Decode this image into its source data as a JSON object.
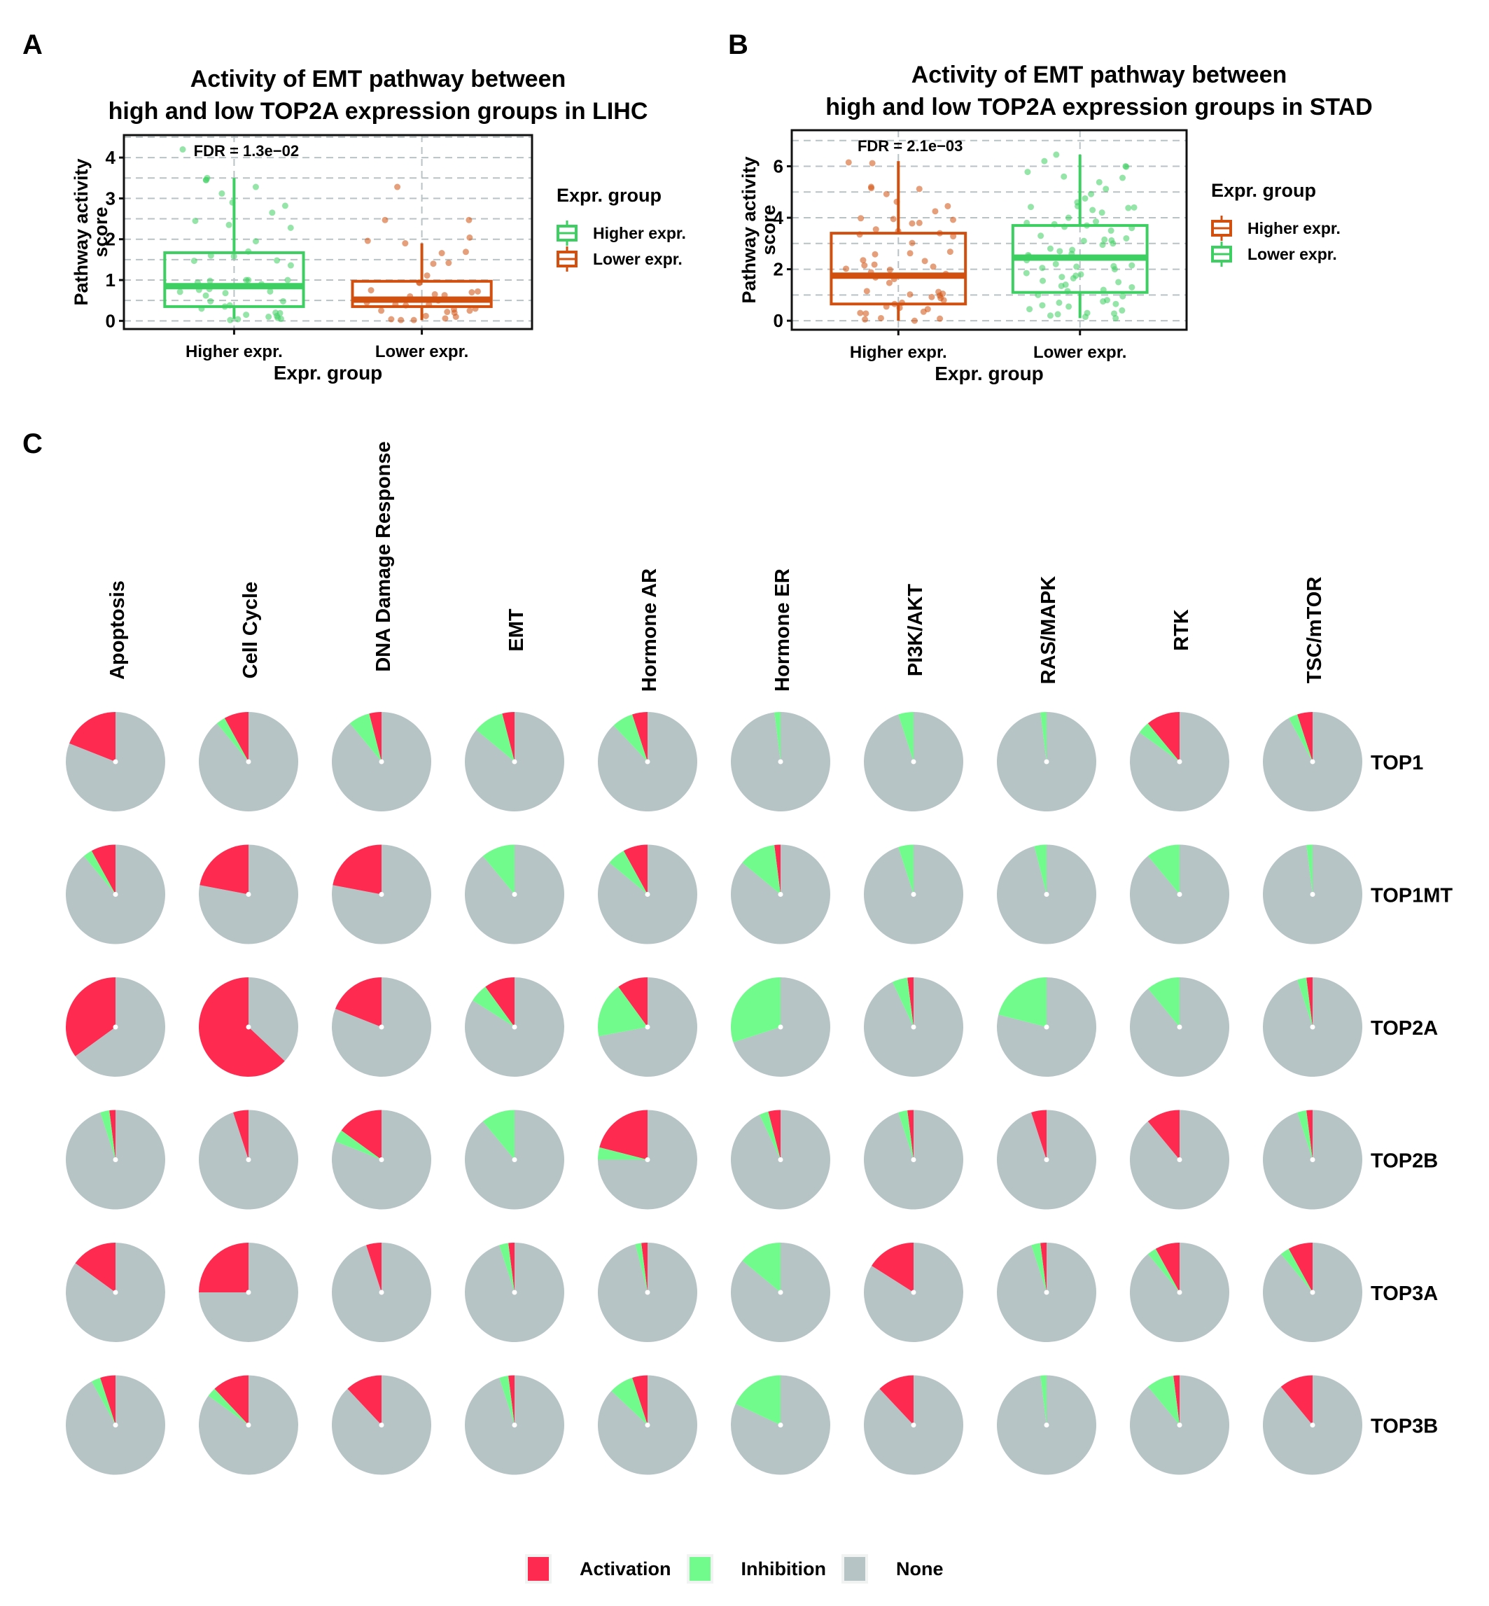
{
  "panels": {
    "A": {
      "letter": "A"
    },
    "B": {
      "letter": "B"
    },
    "C": {
      "letter": "C"
    }
  },
  "colors": {
    "green": "#3ecf63",
    "orange": "#d2500f",
    "activation": "#ff2a50",
    "inhibition": "#70fb8c",
    "none": "#b7c4c6",
    "grid": "#b9c2c4"
  },
  "chart_data": [
    {
      "type": "box",
      "id": "A",
      "title_line1": "Activity of EMT pathway between",
      "title_line2": "high and low TOP2A expression groups in LIHC",
      "xlabel": "Expr. group",
      "ylabel_line1": "Pathway activity",
      "ylabel_line2": "score",
      "annotation": "FDR = 1.3e−02",
      "ylim": [
        -0.2,
        4.55
      ],
      "yticks": [
        0,
        1,
        2,
        3,
        4
      ],
      "grid": true,
      "legend": {
        "title": "Expr. group",
        "position": "right",
        "items": [
          {
            "label": "Higher expr.",
            "color": "#3ecf63"
          },
          {
            "label": "Lower expr.",
            "color": "#d2500f"
          }
        ]
      },
      "categories": [
        "Higher expr.",
        "Lower expr."
      ],
      "boxes": [
        {
          "group": "Higher expr.",
          "color": "#3ecf63",
          "whisker_low": 0.05,
          "q1": 0.35,
          "median": 0.85,
          "q3": 1.67,
          "whisker_high": 3.5,
          "points": [
            4.2,
            3.5,
            3.45,
            3.45,
            3.28,
            3.12,
            2.9,
            2.82,
            2.65,
            2.45,
            2.35,
            2.28,
            1.95,
            1.7,
            1.6,
            1.58,
            1.48,
            1.47,
            1.36,
            1.0,
            1.0,
            1.0,
            0.98,
            0.94,
            0.9,
            0.78,
            0.76,
            0.72,
            0.71,
            0.68,
            0.62,
            0.48,
            0.48,
            0.38,
            0.35,
            0.3,
            0.2,
            0.19,
            0.15,
            0.12,
            0.1,
            0.07,
            0.05,
            0.04,
            0.02
          ]
        },
        {
          "group": "Lower expr.",
          "color": "#d2500f",
          "whisker_low": 0.02,
          "q1": 0.35,
          "median": 0.52,
          "q3": 0.97,
          "whisker_high": 1.9,
          "points": [
            3.28,
            2.47,
            2.47,
            2.04,
            1.96,
            1.9,
            1.69,
            1.66,
            1.42,
            1.4,
            1.11,
            0.94,
            0.93,
            0.75,
            0.72,
            0.7,
            0.65,
            0.63,
            0.6,
            0.5,
            0.45,
            0.4,
            0.4,
            0.38,
            0.3,
            0.28,
            0.25,
            0.25,
            0.22,
            0.2,
            0.12,
            0.1,
            0.06,
            0.04,
            0.02,
            0.02
          ]
        }
      ]
    },
    {
      "type": "box",
      "id": "B",
      "title_line1": "Activity of EMT pathway between",
      "title_line2": "high and low TOP2A expression groups in STAD",
      "xlabel": "Expr. group",
      "ylabel_line1": "Pathway activity",
      "ylabel_line2": "score",
      "annotation": "FDR = 2.1e−03",
      "ylim": [
        -0.35,
        7.4
      ],
      "yticks": [
        0,
        2,
        4,
        6
      ],
      "grid": true,
      "legend": {
        "title": "Expr. group",
        "position": "right",
        "items": [
          {
            "label": "Higher expr.",
            "color": "#d2500f"
          },
          {
            "label": "Lower expr.",
            "color": "#3ecf63"
          }
        ]
      },
      "categories": [
        "Higher expr.",
        "Lower expr."
      ],
      "boxes": [
        {
          "group": "Higher expr.",
          "color": "#d2500f",
          "whisker_low": 0.0,
          "q1": 0.65,
          "median": 1.75,
          "q3": 3.4,
          "whisker_high": 6.2,
          "points": [
            6.15,
            6.12,
            5.2,
            5.15,
            5.12,
            4.92,
            4.62,
            4.45,
            4.25,
            3.98,
            3.95,
            3.92,
            3.8,
            3.78,
            3.55,
            3.48,
            3.4,
            3.35,
            3.28,
            3.02,
            2.68,
            2.62,
            2.58,
            2.35,
            2.32,
            2.18,
            2.15,
            2.1,
            2.02,
            1.98,
            1.88,
            1.82,
            1.68,
            1.62,
            1.47,
            1.15,
            1.12,
            1.05,
            1.02,
            0.98,
            0.92,
            0.88,
            0.8,
            0.7,
            0.65,
            0.55,
            0.5,
            0.45,
            0.35,
            0.3,
            0.28,
            0.1,
            0.08,
            0.05,
            0.0
          ]
        },
        {
          "group": "Lower expr.",
          "color": "#3ecf63",
          "whisker_low": 0.1,
          "q1": 1.1,
          "median": 2.45,
          "q3": 3.7,
          "whisker_high": 6.45,
          "points": [
            6.45,
            6.2,
            6.0,
            5.98,
            5.78,
            5.6,
            5.55,
            5.38,
            5.12,
            4.92,
            4.75,
            4.6,
            4.45,
            4.42,
            4.4,
            4.38,
            4.3,
            4.2,
            4.0,
            3.85,
            3.8,
            3.75,
            3.7,
            3.65,
            3.6,
            3.5,
            3.3,
            3.2,
            3.15,
            3.12,
            3.1,
            3.0,
            2.95,
            2.8,
            2.75,
            2.7,
            2.6,
            2.55,
            2.5,
            2.45,
            2.35,
            2.2,
            2.15,
            2.12,
            2.1,
            2.05,
            2.0,
            1.85,
            1.8,
            1.75,
            1.7,
            1.65,
            1.55,
            1.5,
            1.4,
            1.35,
            1.3,
            1.2,
            1.15,
            1.0,
            0.95,
            0.8,
            0.75,
            0.7,
            0.65,
            0.6,
            0.55,
            0.45,
            0.4,
            0.3,
            0.28,
            0.25,
            0.2,
            0.15,
            0.1
          ]
        }
      ]
    },
    {
      "type": "pie-grid",
      "id": "C",
      "columns": [
        "Apoptosis",
        "Cell Cycle",
        "DNA Damage Response",
        "EMT",
        "Hormone AR",
        "Hormone ER",
        "PI3K/AKT",
        "RAS/MAPK",
        "RTK",
        "TSC/mTOR"
      ],
      "rows": [
        "TOP1",
        "TOP1MT",
        "TOP2A",
        "TOP2B",
        "TOP3A",
        "TOP3B"
      ],
      "legend": {
        "position": "bottom",
        "items": [
          {
            "label": "Activation",
            "color": "#ff2a50"
          },
          {
            "label": "Inhibition",
            "color": "#70fb8c"
          },
          {
            "label": "None",
            "color": "#b7c4c6"
          }
        ]
      },
      "value_units": "percent of samples (Activation, Inhibition); remainder None",
      "values": [
        [
          [
            19,
            0
          ],
          [
            8,
            3
          ],
          [
            4,
            7
          ],
          [
            4,
            10
          ],
          [
            5,
            7
          ],
          [
            0,
            2
          ],
          [
            0,
            5
          ],
          [
            0,
            2
          ],
          [
            11,
            4
          ],
          [
            5,
            3
          ]
        ],
        [
          [
            8,
            3
          ],
          [
            22,
            0
          ],
          [
            22,
            0
          ],
          [
            0,
            11
          ],
          [
            8,
            6
          ],
          [
            2,
            12
          ],
          [
            0,
            5
          ],
          [
            0,
            4
          ],
          [
            0,
            11
          ],
          [
            0,
            2
          ]
        ],
        [
          [
            35,
            0
          ],
          [
            63,
            0
          ],
          [
            19,
            0
          ],
          [
            10,
            6
          ],
          [
            10,
            18
          ],
          [
            0,
            30
          ],
          [
            2,
            5
          ],
          [
            0,
            21
          ],
          [
            0,
            11
          ],
          [
            2,
            3
          ]
        ],
        [
          [
            2,
            3
          ],
          [
            5,
            0
          ],
          [
            15,
            4
          ],
          [
            0,
            11
          ],
          [
            21,
            4
          ],
          [
            4,
            3
          ],
          [
            2,
            3
          ],
          [
            5,
            0
          ],
          [
            11,
            0
          ],
          [
            2,
            3
          ]
        ],
        [
          [
            15,
            0
          ],
          [
            25,
            0
          ],
          [
            5,
            0
          ],
          [
            2,
            3
          ],
          [
            2,
            2
          ],
          [
            0,
            14
          ],
          [
            16,
            0
          ],
          [
            2,
            3
          ],
          [
            8,
            3
          ],
          [
            8,
            3
          ]
        ],
        [
          [
            5,
            3
          ],
          [
            12,
            3
          ],
          [
            12,
            0
          ],
          [
            2,
            3
          ],
          [
            5,
            8
          ],
          [
            0,
            18
          ],
          [
            12,
            0
          ],
          [
            0,
            2
          ],
          [
            2,
            9
          ],
          [
            11,
            0
          ]
        ]
      ]
    }
  ]
}
